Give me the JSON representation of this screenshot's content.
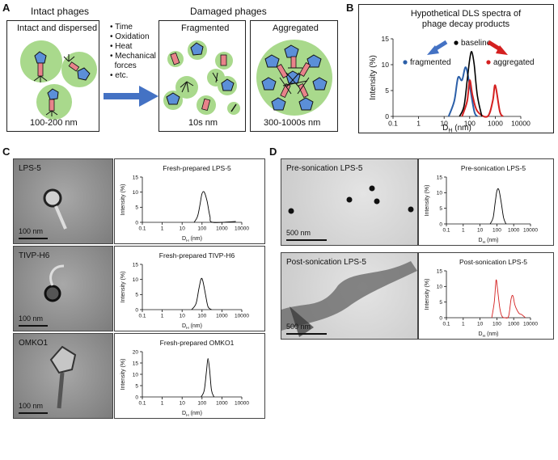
{
  "panels": {
    "a": "A",
    "b": "B",
    "c": "C",
    "d": "D"
  },
  "panel_a": {
    "intact_header": "Intact phages",
    "damaged_header": "Damaged phages",
    "box1_title": "Intact and dispersed",
    "box1_caption": "100-200 nm",
    "factors": [
      "Time",
      "Oxidation",
      "Heat",
      "Mechanical",
      "forces",
      "etc."
    ],
    "box2_title": "Fragmented",
    "box2_caption": "10s nm",
    "box3_title": "Aggregated",
    "box3_caption": "300-1000s nm"
  },
  "panel_b": {
    "title_line1": "Hypothetical DLS spectra of",
    "title_line2": "phage decay products",
    "ylabel": "Intensity  (%)",
    "xlabel": "D",
    "xlabel_sub": "H",
    "xlabel_unit": " (nm)",
    "legend_baseline": "baseline",
    "legend_fragmented": "fragmented",
    "legend_aggregated": "aggregated",
    "yticks": [
      "0",
      "5",
      "10",
      "15"
    ],
    "xticks": [
      "0.1",
      "1",
      "10",
      "100",
      "1000",
      "10000"
    ]
  },
  "panel_c": {
    "tem": [
      {
        "label": "LPS-5",
        "scale": "100 nm"
      },
      {
        "label": "TIVP-H6",
        "scale": "100 nm"
      },
      {
        "label": "OMKO1",
        "scale": "100 nm"
      }
    ],
    "dls": [
      {
        "title": "Fresh-prepared LPS-5"
      },
      {
        "title": "Fresh-prepared TIVP-H6"
      },
      {
        "title": "Fresh-prepared OMKO1"
      }
    ]
  },
  "panel_d": {
    "tem": [
      {
        "label": "Pre-sonication LPS-5",
        "scale": "500 nm"
      },
      {
        "label": "Post-sonication LPS-5",
        "scale": "500 nm"
      }
    ],
    "dls": [
      {
        "title": "Pre-sonication LPS-5"
      },
      {
        "title": "Post-sonication LPS-5"
      }
    ]
  },
  "small_axes": {
    "ylabel": "Intensity (%)",
    "xlabel": "D",
    "xlabel_sub": "H",
    "xlabel_unit": " (nm)",
    "xticks": [
      "0.1",
      "1",
      "10",
      "100",
      "1000",
      "10000"
    ],
    "yticks": [
      "0",
      "5",
      "10",
      "15"
    ]
  },
  "colors": {
    "baseline": "#000000",
    "fragmented": "#2b5fa8",
    "aggregated": "#d42020",
    "circle_fill": "#a9d98c",
    "phage_head": "#5b8fd8",
    "phage_tail": "#e8838a",
    "arrow": "#4472c4"
  },
  "chart_data": [
    {
      "type": "line",
      "title": "Hypothetical DLS spectra of phage decay products",
      "xlabel": "DH (nm)",
      "ylabel": "Intensity  (%)",
      "xscale": "log",
      "xlim": [
        0.1,
        10000
      ],
      "ylim": [
        0,
        15
      ],
      "series": [
        {
          "name": "baseline",
          "x": [
            40,
            60,
            80,
            100,
            120,
            150,
            200,
            300
          ],
          "y": [
            0,
            2,
            7,
            11,
            12.5,
            10,
            4,
            0
          ]
        },
        {
          "name": "fragmented",
          "x": [
            15,
            25,
            35,
            50,
            70,
            100,
            150,
            200
          ],
          "y": [
            0,
            3,
            7.5,
            7,
            9.5,
            6,
            1,
            0
          ]
        },
        {
          "name": "aggregated",
          "x": [
            50,
            80,
            100,
            130,
            200,
            500,
            800,
            1000,
            1500,
            2000
          ],
          "y": [
            0,
            3,
            7,
            4,
            1,
            0,
            3,
            6,
            1,
            0
          ]
        }
      ]
    },
    {
      "type": "line",
      "title": "Fresh-prepared LPS-5",
      "xscale": "log",
      "xlim": [
        0.1,
        10000
      ],
      "ylim": [
        0,
        15
      ],
      "series": [
        {
          "x": [
            40,
            60,
            80,
            100,
            130,
            180,
            250,
            350,
            5000
          ],
          "y": [
            0,
            2,
            6,
            9.5,
            10,
            7,
            2,
            0,
            0.3
          ]
        }
      ]
    },
    {
      "type": "line",
      "title": "Fresh-prepared TIVP-H6",
      "xscale": "log",
      "xlim": [
        0.1,
        10000
      ],
      "ylim": [
        0,
        15
      ],
      "series": [
        {
          "x": [
            30,
            50,
            70,
            90,
            110,
            150,
            200,
            300
          ],
          "y": [
            0,
            2,
            7,
            10.2,
            9.5,
            5,
            1,
            0
          ]
        }
      ]
    },
    {
      "type": "line",
      "title": "Fresh-prepared OMKO1",
      "xscale": "log",
      "xlim": [
        0.1,
        10000
      ],
      "ylim": [
        0,
        20
      ],
      "series": [
        {
          "x": [
            90,
            130,
            170,
            200,
            240,
            300,
            400
          ],
          "y": [
            0,
            3,
            12,
            17,
            12,
            3,
            0
          ]
        }
      ]
    },
    {
      "type": "line",
      "title": "Pre-sonication LPS-5",
      "xscale": "log",
      "xlim": [
        0.1,
        10000
      ],
      "ylim": [
        0,
        15
      ],
      "series": [
        {
          "x": [
            40,
            60,
            80,
            100,
            130,
            180,
            250,
            350
          ],
          "y": [
            0,
            2,
            7,
            10.5,
            11,
            7,
            2,
            0
          ]
        }
      ]
    },
    {
      "type": "line",
      "title": "Post-sonication LPS-5",
      "xscale": "log",
      "xlim": [
        0.1,
        10000
      ],
      "ylim": [
        0,
        15
      ],
      "series": [
        {
          "x": [
            50,
            70,
            90,
            110,
            150,
            200,
            300,
            500,
            700,
            900,
            1200,
            2000,
            3000,
            5000
          ],
          "y": [
            0,
            5,
            12,
            9,
            3,
            0.5,
            0,
            0.5,
            6,
            7,
            4,
            1.5,
            1,
            0
          ]
        }
      ]
    }
  ]
}
